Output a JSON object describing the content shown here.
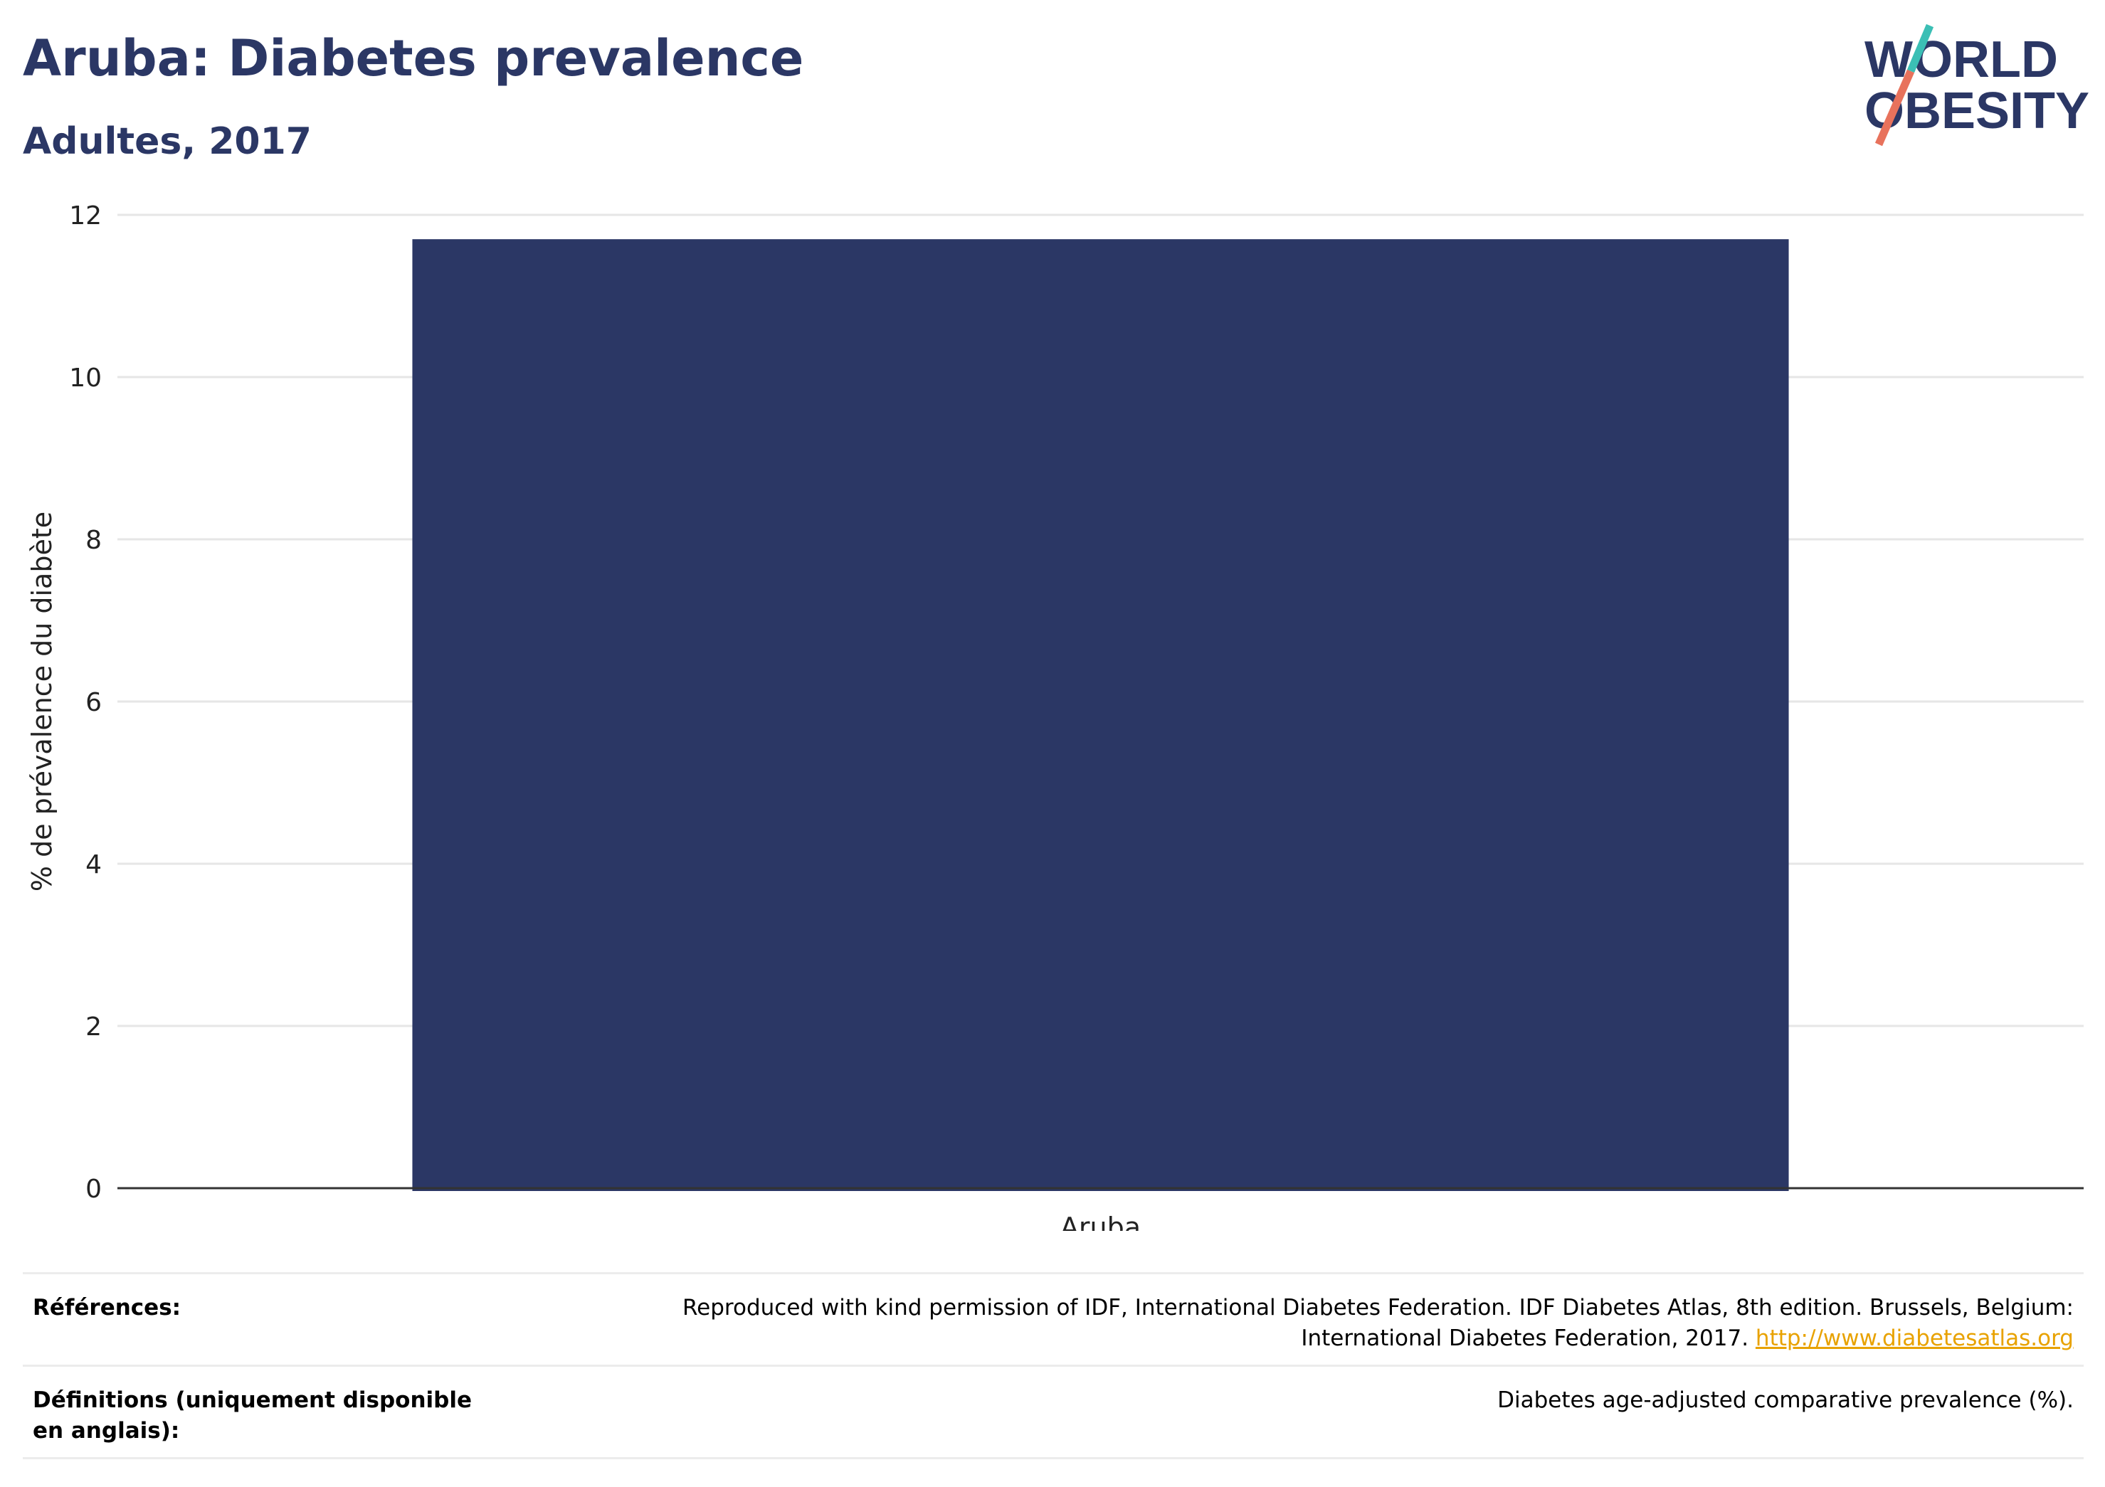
{
  "header": {
    "title": "Aruba: Diabetes prevalence",
    "subtitle": "Adultes, 2017"
  },
  "logo": {
    "line1": "WORLD",
    "line2": "OBESITY",
    "colors": {
      "text": "#2b3765",
      "slash_top": "#3bbfb5",
      "slash_bottom": "#e8725c"
    }
  },
  "chart_data": {
    "type": "bar",
    "categories": [
      "Aruba"
    ],
    "series": [
      {
        "values": [
          11.7
        ],
        "color": "#2b3765"
      }
    ],
    "ylabel": "% de prévalence du diabète",
    "xlabel": "",
    "ylim": [
      0,
      12
    ],
    "yticks": [
      0,
      2,
      4,
      6,
      8,
      10,
      12
    ],
    "grid": true,
    "legend": "none"
  },
  "references": {
    "label": "Références:",
    "text": "Reproduced with kind permission of IDF, International Diabetes Federation. IDF Diabetes Atlas, 8th edition. Brussels, Belgium: International Diabetes Federation, 2017.",
    "link": "http://www.diabetesatlas.org"
  },
  "definitions": {
    "label": "Définitions (uniquement disponible en anglais):",
    "text": "Diabetes age-adjusted comparative prevalence (%)."
  }
}
